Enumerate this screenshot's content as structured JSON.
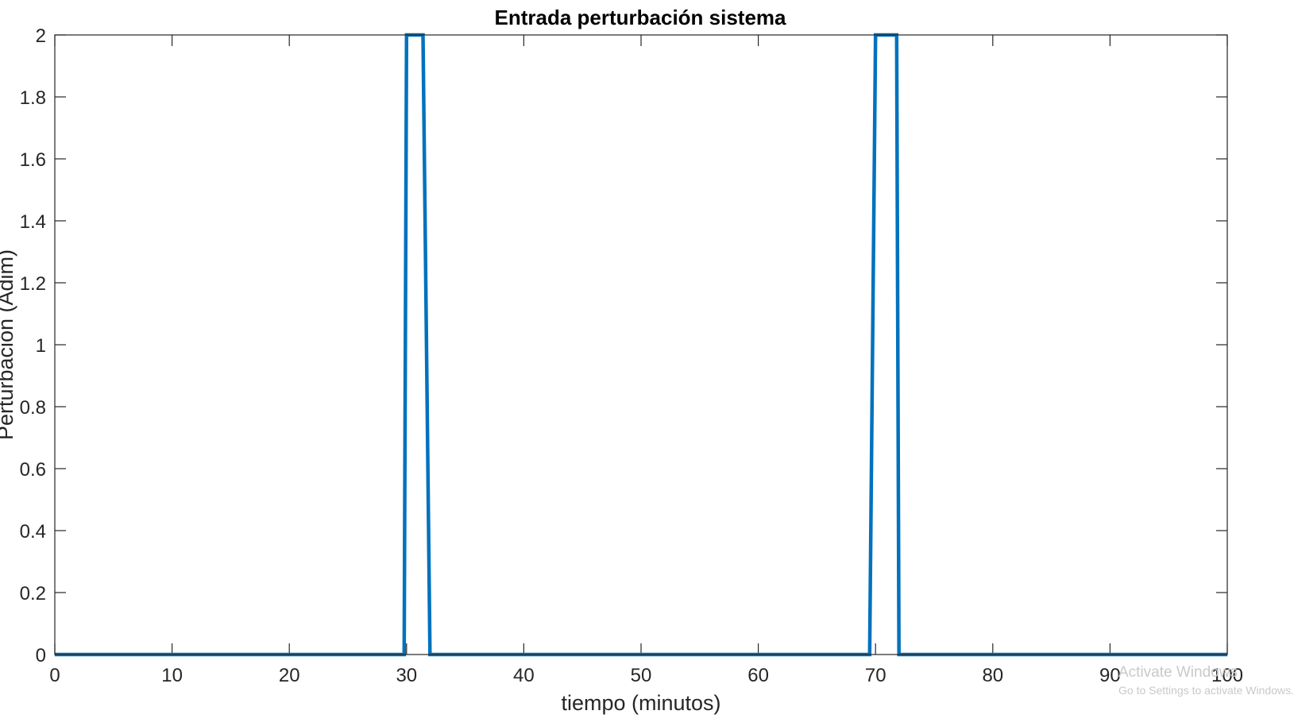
{
  "chart_data": {
    "type": "line",
    "title": "Entrada perturbación sistema",
    "xlabel": "tiempo (minutos)",
    "ylabel": "Perturbación (Adim)",
    "xlim": [
      0,
      100
    ],
    "ylim": [
      0,
      2
    ],
    "xticks": [
      0,
      10,
      20,
      30,
      40,
      50,
      60,
      70,
      80,
      90,
      100
    ],
    "yticks": [
      0,
      0.2,
      0.4,
      0.6,
      0.8,
      1,
      1.2,
      1.4,
      1.6,
      1.8,
      2
    ],
    "grid": false,
    "series": [
      {
        "color": "#0072BD",
        "x": [
          0,
          29.8,
          30,
          31.4,
          32,
          69.5,
          70,
          71.8,
          72,
          100
        ],
        "y": [
          0,
          0,
          2,
          2,
          0,
          0,
          2,
          2,
          0,
          0
        ]
      }
    ]
  },
  "overlay": {
    "line1": "Activate Windows",
    "line2": "Go to Settings to activate Windows."
  }
}
